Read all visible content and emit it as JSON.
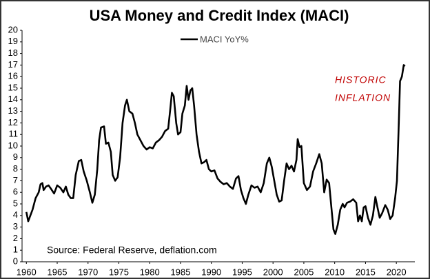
{
  "chart_data": {
    "type": "line",
    "title": "USA Money and Credit Index (MACI)",
    "source": "Source: Federal Reserve, deflation.com",
    "annotations": [
      "HISTORIC",
      "INFLATION"
    ],
    "annotation_color": "#c00000",
    "legend": "top",
    "xlim": [
      1959.3,
      2023
    ],
    "ylim": [
      0,
      20
    ],
    "xticks": [
      1960,
      1965,
      1970,
      1975,
      1980,
      1985,
      1990,
      1995,
      2000,
      2005,
      2010,
      2015,
      2020
    ],
    "yticks": [
      0,
      1,
      2,
      3,
      4,
      5,
      6,
      7,
      8,
      9,
      10,
      11,
      12,
      13,
      14,
      15,
      16,
      17,
      18,
      19,
      20
    ],
    "grid": false,
    "x": [
      1960,
      1960.3,
      1961,
      1961.5,
      1962,
      1962.3,
      1962.6,
      1962.8,
      1963.2,
      1963.6,
      1964,
      1964.5,
      1965,
      1965.5,
      1966,
      1966.4,
      1966.8,
      1967.2,
      1967.6,
      1968,
      1968.5,
      1968.9,
      1969.3,
      1969.8,
      1970.3,
      1970.7,
      1971.1,
      1971.5,
      1971.8,
      1972.1,
      1972.6,
      1972.9,
      1973.3,
      1973.7,
      1974,
      1974.4,
      1974.8,
      1975.2,
      1975.6,
      1976,
      1976.3,
      1976.7,
      1977.2,
      1977.6,
      1978,
      1978.5,
      1979,
      1979.5,
      1980,
      1980.5,
      1981,
      1981.5,
      1982,
      1982.5,
      1983,
      1983.3,
      1983.6,
      1983.9,
      1984.3,
      1984.6,
      1985,
      1985.3,
      1985.7,
      1986,
      1986.3,
      1986.6,
      1986.9,
      1987.2,
      1987.6,
      1988,
      1988.4,
      1988.8,
      1989.2,
      1989.6,
      1990,
      1990.5,
      1991,
      1991.5,
      1992,
      1992.5,
      1993,
      1993.5,
      1994,
      1994.4,
      1994.8,
      1995.2,
      1995.6,
      1996,
      1996.5,
      1997,
      1997.5,
      1998,
      1998.5,
      1999,
      1999.4,
      1999.8,
      2000.2,
      2000.6,
      2001,
      2001.4,
      2001.8,
      2002.2,
      2002.6,
      2003,
      2003.4,
      2003.8,
      2004,
      2004.3,
      2004.6,
      2005,
      2005.5,
      2006,
      2006.5,
      2007,
      2007.5,
      2007.9,
      2008.3,
      2008.7,
      2009.1,
      2009.5,
      2009.8,
      2010.1,
      2010.5,
      2010.9,
      2011.3,
      2011.6,
      2012,
      2012.5,
      2013,
      2013.5,
      2013.8,
      2014.1,
      2014.4,
      2014.7,
      2015,
      2015.4,
      2015.8,
      2016.2,
      2016.6,
      2016.9,
      2017.3,
      2017.7,
      2018.2,
      2018.6,
      2019,
      2019.4,
      2019.8,
      2020.1,
      2020.4,
      2020.6,
      2020.9,
      2021.2,
      2021.4
    ],
    "series": [
      {
        "name": "MACI YoY%",
        "color": "#000000",
        "values": [
          4.3,
          3.5,
          4.5,
          5.5,
          6.0,
          6.7,
          6.8,
          6.2,
          6.5,
          6.6,
          6.3,
          5.9,
          6.6,
          6.4,
          6.0,
          6.5,
          5.8,
          5.5,
          5.5,
          7.5,
          8.7,
          8.8,
          7.8,
          7.0,
          6.0,
          5.1,
          5.8,
          8.0,
          10.5,
          11.6,
          11.7,
          10.2,
          10.3,
          9.5,
          7.5,
          7.0,
          7.3,
          9.0,
          12.0,
          13.5,
          14.0,
          13.0,
          12.8,
          12.0,
          11.0,
          10.5,
          10.0,
          9.7,
          9.9,
          9.8,
          10.3,
          10.5,
          10.8,
          11.3,
          11.5,
          13.0,
          14.6,
          14.3,
          12.0,
          11.0,
          11.2,
          12.8,
          13.5,
          15.2,
          14.0,
          14.8,
          15.0,
          13.5,
          11.0,
          9.5,
          8.5,
          8.6,
          8.8,
          8.0,
          7.8,
          7.9,
          7.2,
          6.9,
          6.7,
          6.8,
          6.5,
          6.3,
          7.2,
          7.4,
          6.2,
          5.5,
          5.0,
          5.8,
          6.6,
          6.4,
          6.5,
          6.0,
          6.8,
          8.5,
          9.0,
          8.2,
          7.0,
          5.8,
          5.2,
          5.3,
          7.0,
          8.5,
          8.0,
          8.3,
          7.8,
          8.8,
          10.6,
          9.9,
          10.0,
          6.8,
          6.2,
          6.5,
          7.8,
          8.5,
          9.3,
          8.5,
          6.0,
          7.1,
          6.8,
          4.5,
          2.8,
          2.4,
          3.2,
          4.5,
          5.0,
          4.7,
          5.1,
          5.2,
          5.4,
          5.1,
          3.5,
          4.0,
          3.5,
          4.7,
          4.8,
          3.8,
          3.2,
          4.0,
          5.6,
          4.8,
          3.8,
          4.2,
          4.9,
          4.5,
          3.7,
          4.0,
          5.5,
          7.0,
          12.0,
          15.6,
          16.0,
          17.0,
          16.9
        ]
      }
    ]
  }
}
